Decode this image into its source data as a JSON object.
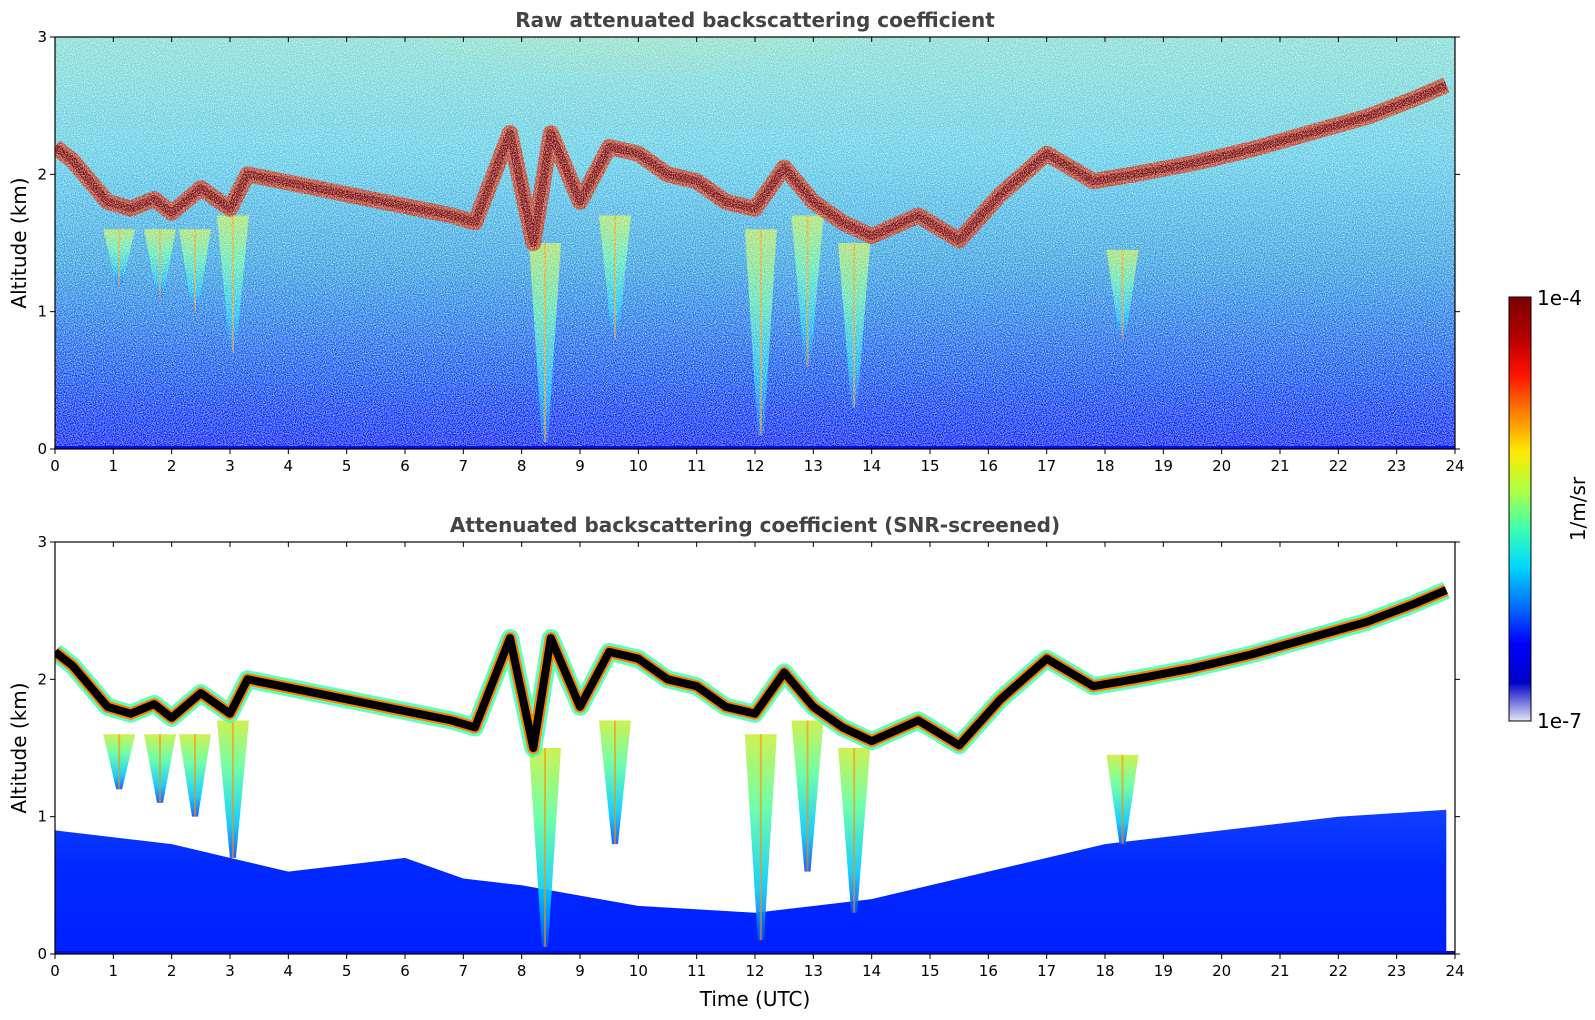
{
  "chart_data": [
    {
      "type": "heatmap",
      "title": "Raw attenuated backscattering coefficient",
      "xlabel": "",
      "ylabel": "Altitude (km)",
      "xlim": [
        0,
        24
      ],
      "ylim": [
        0,
        3
      ],
      "xticks": [
        "0",
        "1",
        "2",
        "3",
        "4",
        "5",
        "6",
        "7",
        "8",
        "9",
        "10",
        "11",
        "12",
        "13",
        "14",
        "15",
        "16",
        "17",
        "18",
        "19",
        "20",
        "21",
        "22",
        "23",
        "24"
      ],
      "yticks": [
        "0",
        "1",
        "2",
        "3"
      ],
      "screened": false,
      "cloud_base": [
        {
          "x": 0.0,
          "y": 2.2
        },
        {
          "x": 0.3,
          "y": 2.1
        },
        {
          "x": 0.9,
          "y": 1.8
        },
        {
          "x": 1.3,
          "y": 1.75
        },
        {
          "x": 1.7,
          "y": 1.82
        },
        {
          "x": 2.0,
          "y": 1.72
        },
        {
          "x": 2.5,
          "y": 1.9
        },
        {
          "x": 3.0,
          "y": 1.75
        },
        {
          "x": 3.3,
          "y": 2.0
        },
        {
          "x": 6.8,
          "y": 1.7
        },
        {
          "x": 7.2,
          "y": 1.65
        },
        {
          "x": 7.8,
          "y": 2.3
        },
        {
          "x": 8.2,
          "y": 1.5
        },
        {
          "x": 8.5,
          "y": 2.3
        },
        {
          "x": 9.0,
          "y": 1.8
        },
        {
          "x": 9.5,
          "y": 2.2
        },
        {
          "x": 10.0,
          "y": 2.15
        },
        {
          "x": 10.5,
          "y": 2.0
        },
        {
          "x": 11.0,
          "y": 1.95
        },
        {
          "x": 11.5,
          "y": 1.8
        },
        {
          "x": 12.0,
          "y": 1.75
        },
        {
          "x": 12.5,
          "y": 2.05
        },
        {
          "x": 13.0,
          "y": 1.8
        },
        {
          "x": 13.5,
          "y": 1.65
        },
        {
          "x": 14.0,
          "y": 1.55
        },
        {
          "x": 14.8,
          "y": 1.7
        },
        {
          "x": 15.5,
          "y": 1.52
        },
        {
          "x": 16.2,
          "y": 1.85
        },
        {
          "x": 17.0,
          "y": 2.15
        },
        {
          "x": 17.8,
          "y": 1.95
        },
        {
          "x": 18.5,
          "y": 2.0
        },
        {
          "x": 19.5,
          "y": 2.08
        },
        {
          "x": 20.5,
          "y": 2.18
        },
        {
          "x": 21.5,
          "y": 2.3
        },
        {
          "x": 22.5,
          "y": 2.42
        },
        {
          "x": 23.3,
          "y": 2.55
        },
        {
          "x": 23.85,
          "y": 2.65
        }
      ],
      "precip_shafts": [
        {
          "x": 1.1,
          "top": 1.6,
          "bottom": 1.2
        },
        {
          "x": 1.8,
          "top": 1.6,
          "bottom": 1.1
        },
        {
          "x": 2.4,
          "top": 1.6,
          "bottom": 1.0
        },
        {
          "x": 3.05,
          "top": 1.7,
          "bottom": 0.7
        },
        {
          "x": 8.4,
          "top": 1.5,
          "bottom": 0.05
        },
        {
          "x": 9.6,
          "top": 1.7,
          "bottom": 0.8
        },
        {
          "x": 12.1,
          "top": 1.6,
          "bottom": 0.1
        },
        {
          "x": 12.9,
          "top": 1.7,
          "bottom": 0.6
        },
        {
          "x": 13.7,
          "top": 1.5,
          "bottom": 0.3
        },
        {
          "x": 18.3,
          "top": 1.45,
          "bottom": 0.8
        }
      ]
    },
    {
      "type": "heatmap",
      "title": "Attenuated backscattering coefficient (SNR-screened)",
      "xlabel": "Time (UTC)",
      "ylabel": "Altitude (km)",
      "xlim": [
        0,
        24
      ],
      "ylim": [
        0,
        3
      ],
      "xticks": [
        "0",
        "1",
        "2",
        "3",
        "4",
        "5",
        "6",
        "7",
        "8",
        "9",
        "10",
        "11",
        "12",
        "13",
        "14",
        "15",
        "16",
        "17",
        "18",
        "19",
        "20",
        "21",
        "22",
        "23",
        "24"
      ],
      "yticks": [
        "0",
        "1",
        "2",
        "3"
      ],
      "screened": true,
      "aerosol_top": [
        {
          "x": 0.0,
          "y": 0.9
        },
        {
          "x": 2.0,
          "y": 0.8
        },
        {
          "x": 4.0,
          "y": 0.6
        },
        {
          "x": 6.0,
          "y": 0.7
        },
        {
          "x": 7.0,
          "y": 0.55
        },
        {
          "x": 8.0,
          "y": 0.5
        },
        {
          "x": 10.0,
          "y": 0.35
        },
        {
          "x": 12.0,
          "y": 0.3
        },
        {
          "x": 14.0,
          "y": 0.4
        },
        {
          "x": 16.0,
          "y": 0.6
        },
        {
          "x": 18.0,
          "y": 0.8
        },
        {
          "x": 20.0,
          "y": 0.9
        },
        {
          "x": 22.0,
          "y": 1.0
        },
        {
          "x": 23.85,
          "y": 1.05
        }
      ]
    }
  ],
  "colorbar": {
    "label": "1/m/sr",
    "max_label": "1e-4",
    "min_label": "1e-7",
    "scale": "log",
    "colormap": [
      "#e6e6f5",
      "#0000c8",
      "#0000ff",
      "#0070ff",
      "#00d8ff",
      "#40ffb0",
      "#b0ff40",
      "#ffe800",
      "#ff8000",
      "#ff1000",
      "#b00000",
      "#7a0000"
    ]
  }
}
